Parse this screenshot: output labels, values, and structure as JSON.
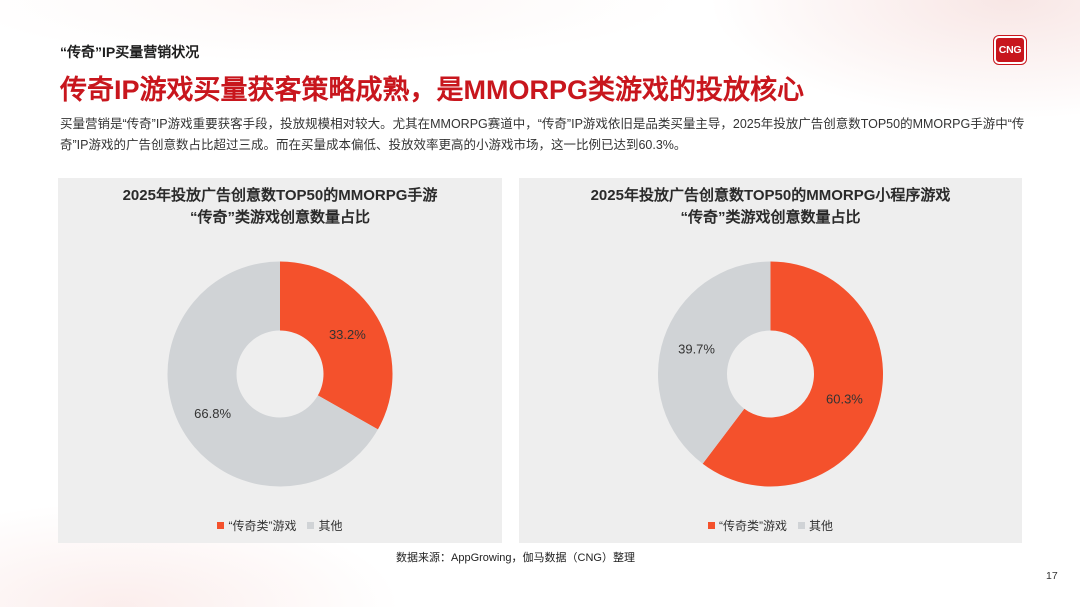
{
  "header": {
    "section_label": "“传奇”IP买量营销状况",
    "logo_text": "CNG",
    "title": "传奇IP游戏买量获客策略成熟，是MMORPG类游戏的投放核心",
    "intro": "买量营销是“传奇”IP游戏重要获客手段，投放规模相对较大。尤其在MMORPG赛道中，“传奇”IP游戏依旧是品类买量主导，2025年投放广告创意数TOP50的MMORPG手游中“传奇”IP游戏的广告创意数占比超过三成。而在买量成本偏低、投放效率更高的小游戏市场，这一比例已达到60.3%。"
  },
  "colors": {
    "title": "#c8161d",
    "logo": "#c8161d",
    "accent": "#f4512c",
    "other": "#d0d3d6",
    "panel": "#eeeeee"
  },
  "chart_data": [
    {
      "type": "pie",
      "style": "donut",
      "title_lines": [
        "2025年投放广告创意数TOP50的MMORPG手游",
        "“传奇”类游戏创意数量占比"
      ],
      "categories": [
        "“传奇类”游戏",
        "其他"
      ],
      "values": [
        33.2,
        66.8
      ],
      "data_labels": [
        "33.2%",
        "66.8%"
      ],
      "colors": [
        "#f4512c",
        "#d0d3d6"
      ],
      "legend": "bottom"
    },
    {
      "type": "pie",
      "style": "donut",
      "title_lines": [
        "2025年投放广告创意数TOP50的MMORPG小程序游戏",
        "“传奇”类游戏创意数量占比"
      ],
      "categories": [
        "“传奇类”游戏",
        "其他"
      ],
      "values": [
        60.3,
        39.7
      ],
      "data_labels": [
        "60.3%",
        "39.7%"
      ],
      "colors": [
        "#f4512c",
        "#d0d3d6"
      ],
      "legend": "bottom"
    }
  ],
  "footer": {
    "source": "数据来源：AppGrowing，伽马数据（CNG）整理",
    "page_number": "17"
  }
}
